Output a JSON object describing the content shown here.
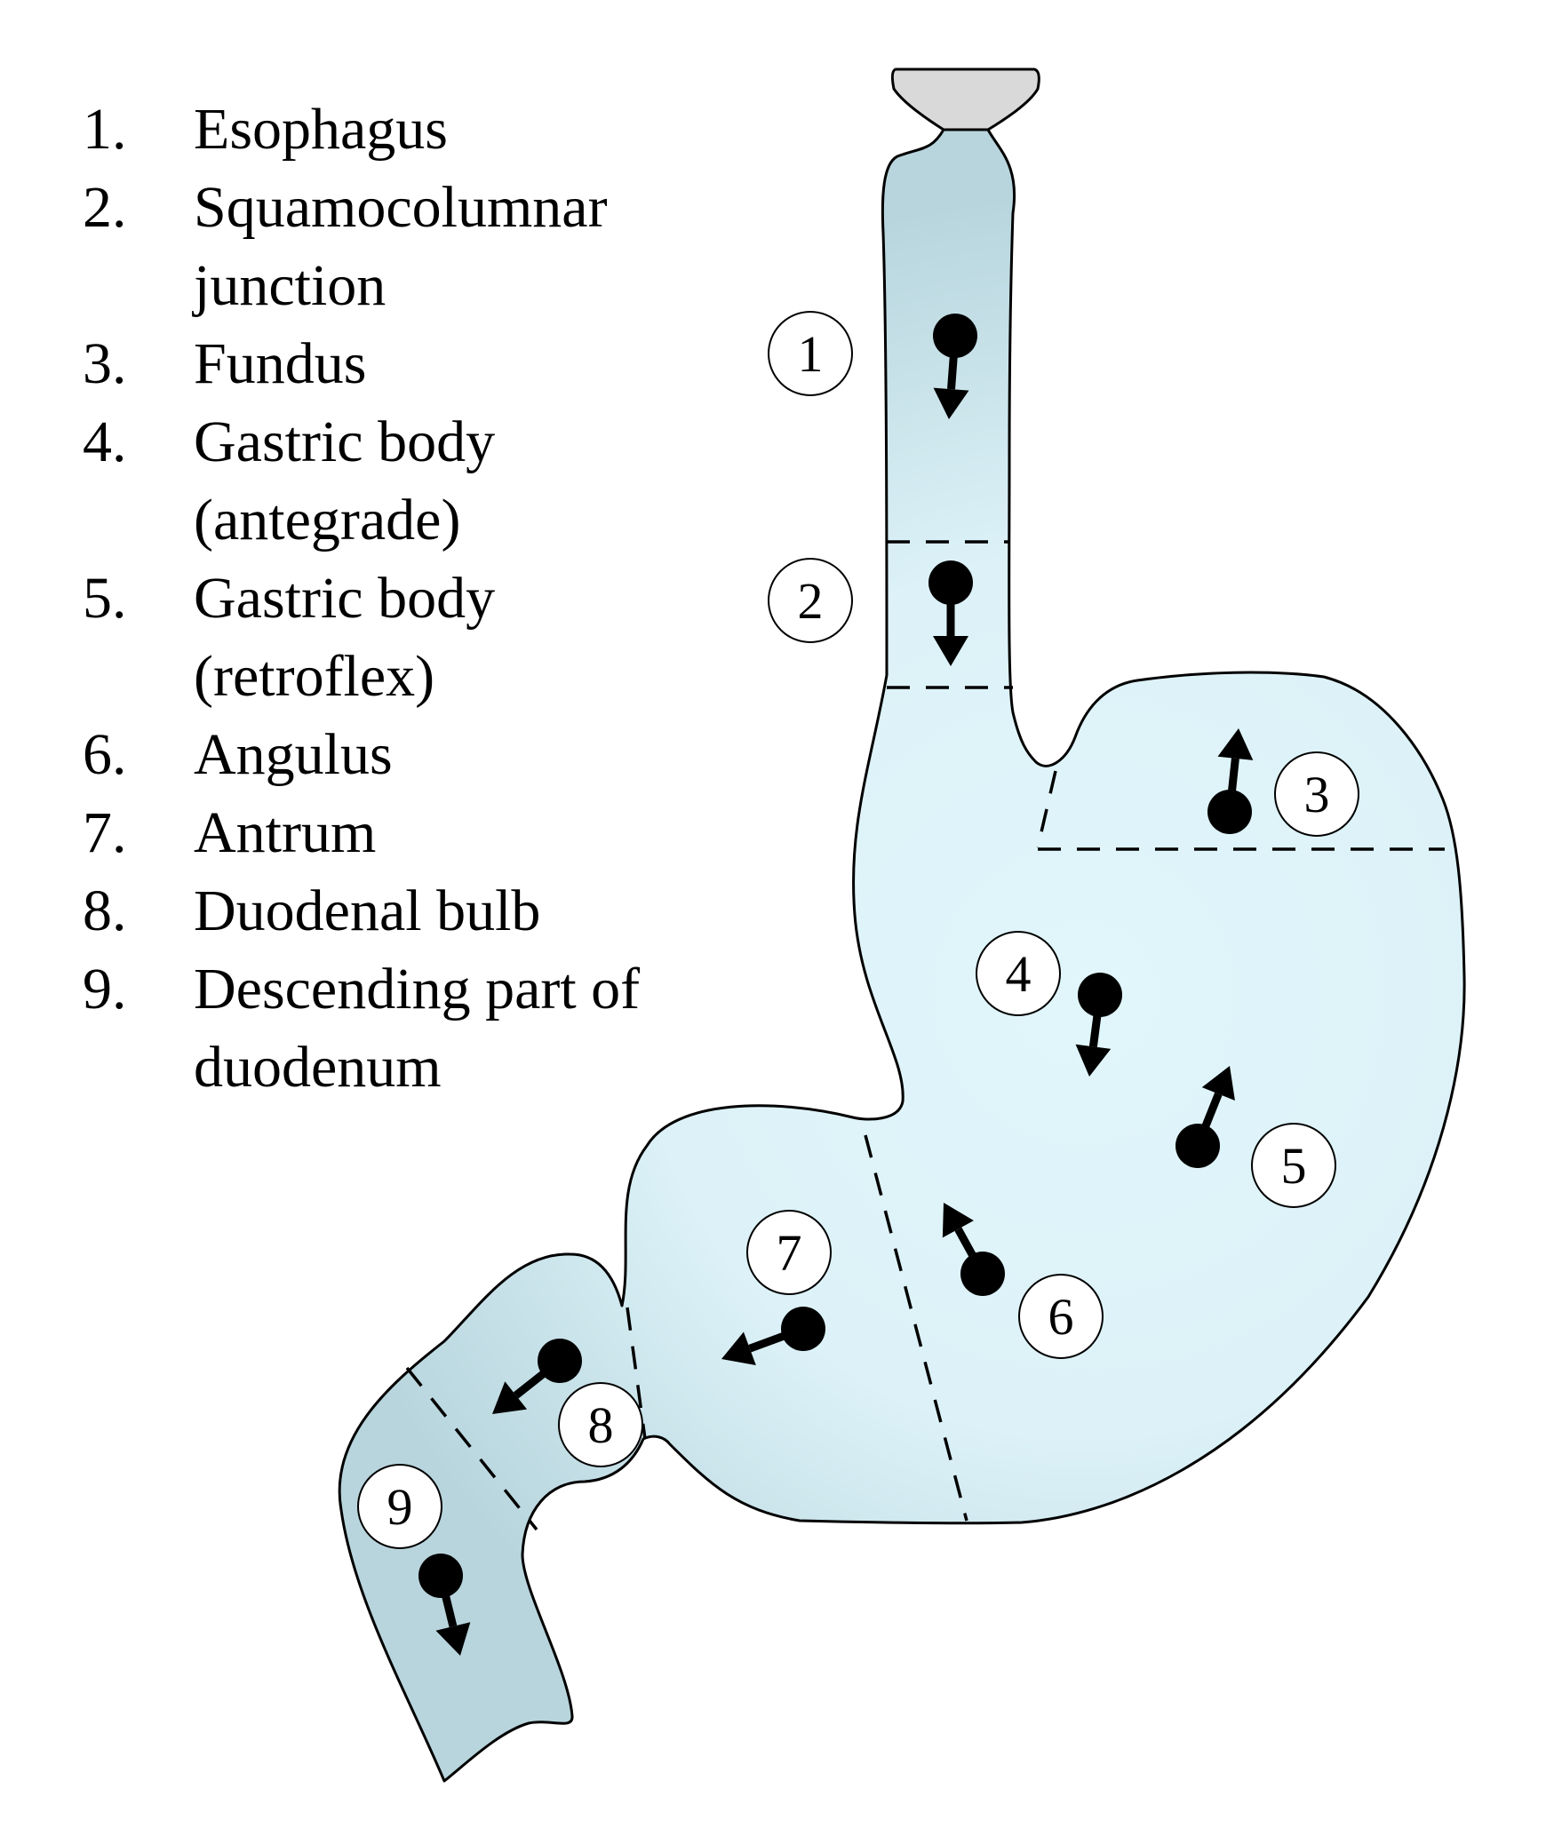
{
  "legend": [
    {
      "num": "1.",
      "lines": [
        "Esophagus"
      ]
    },
    {
      "num": "2.",
      "lines": [
        "Squamocolumnar",
        "junction"
      ]
    },
    {
      "num": "3.",
      "lines": [
        "Fundus"
      ]
    },
    {
      "num": "4.",
      "lines": [
        "Gastric body",
        "(antegrade)"
      ]
    },
    {
      "num": "5.",
      "lines": [
        "Gastric body",
        "(retroflex)"
      ]
    },
    {
      "num": "6.",
      "lines": [
        "Angulus"
      ]
    },
    {
      "num": "7.",
      "lines": [
        "Antrum"
      ]
    },
    {
      "num": "8.",
      "lines": [
        "Duodenal bulb"
      ]
    },
    {
      "num": "9.",
      "lines": [
        "Descending part of",
        "duodenum"
      ]
    }
  ],
  "stations": [
    {
      "label": "1",
      "view_direction": "down"
    },
    {
      "label": "2",
      "view_direction": "down"
    },
    {
      "label": "3",
      "view_direction": "up"
    },
    {
      "label": "4",
      "view_direction": "down"
    },
    {
      "label": "5",
      "view_direction": "up"
    },
    {
      "label": "6",
      "view_direction": "up-left"
    },
    {
      "label": "7",
      "view_direction": "left"
    },
    {
      "label": "8",
      "view_direction": "down-left"
    },
    {
      "label": "9",
      "view_direction": "down"
    }
  ],
  "colors": {
    "organ_fill_light": "#e1f6fb",
    "organ_fill_shade": "#b8d5dd",
    "cap_fill": "#d9d9d9",
    "outline": "#000000",
    "marker": "#000000"
  }
}
